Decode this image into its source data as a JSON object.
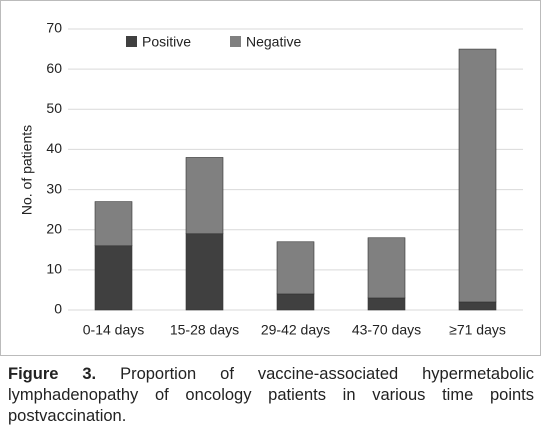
{
  "chart_data": {
    "type": "stacked-bar",
    "categories": [
      "0-14 days",
      "15-28 days",
      "29-42 days",
      "43-70 days",
      "≥71 days"
    ],
    "series": [
      {
        "name": "Positive",
        "color": "#404040",
        "values": [
          16,
          19,
          4,
          3,
          2
        ]
      },
      {
        "name": "Negative",
        "color": "#808080",
        "values": [
          11,
          19,
          13,
          15,
          63
        ]
      }
    ],
    "ylabel": "No. of patients",
    "ylim": [
      0,
      70
    ],
    "yticks": [
      0,
      10,
      20,
      30,
      40,
      50,
      60,
      70
    ],
    "grid": true,
    "legend": "top"
  },
  "caption": {
    "label": "Figure 3.",
    "text": "Proportion of vaccine-associated hypermetabolic lymphadenopathy of oncology patients in various time points postvaccination."
  }
}
